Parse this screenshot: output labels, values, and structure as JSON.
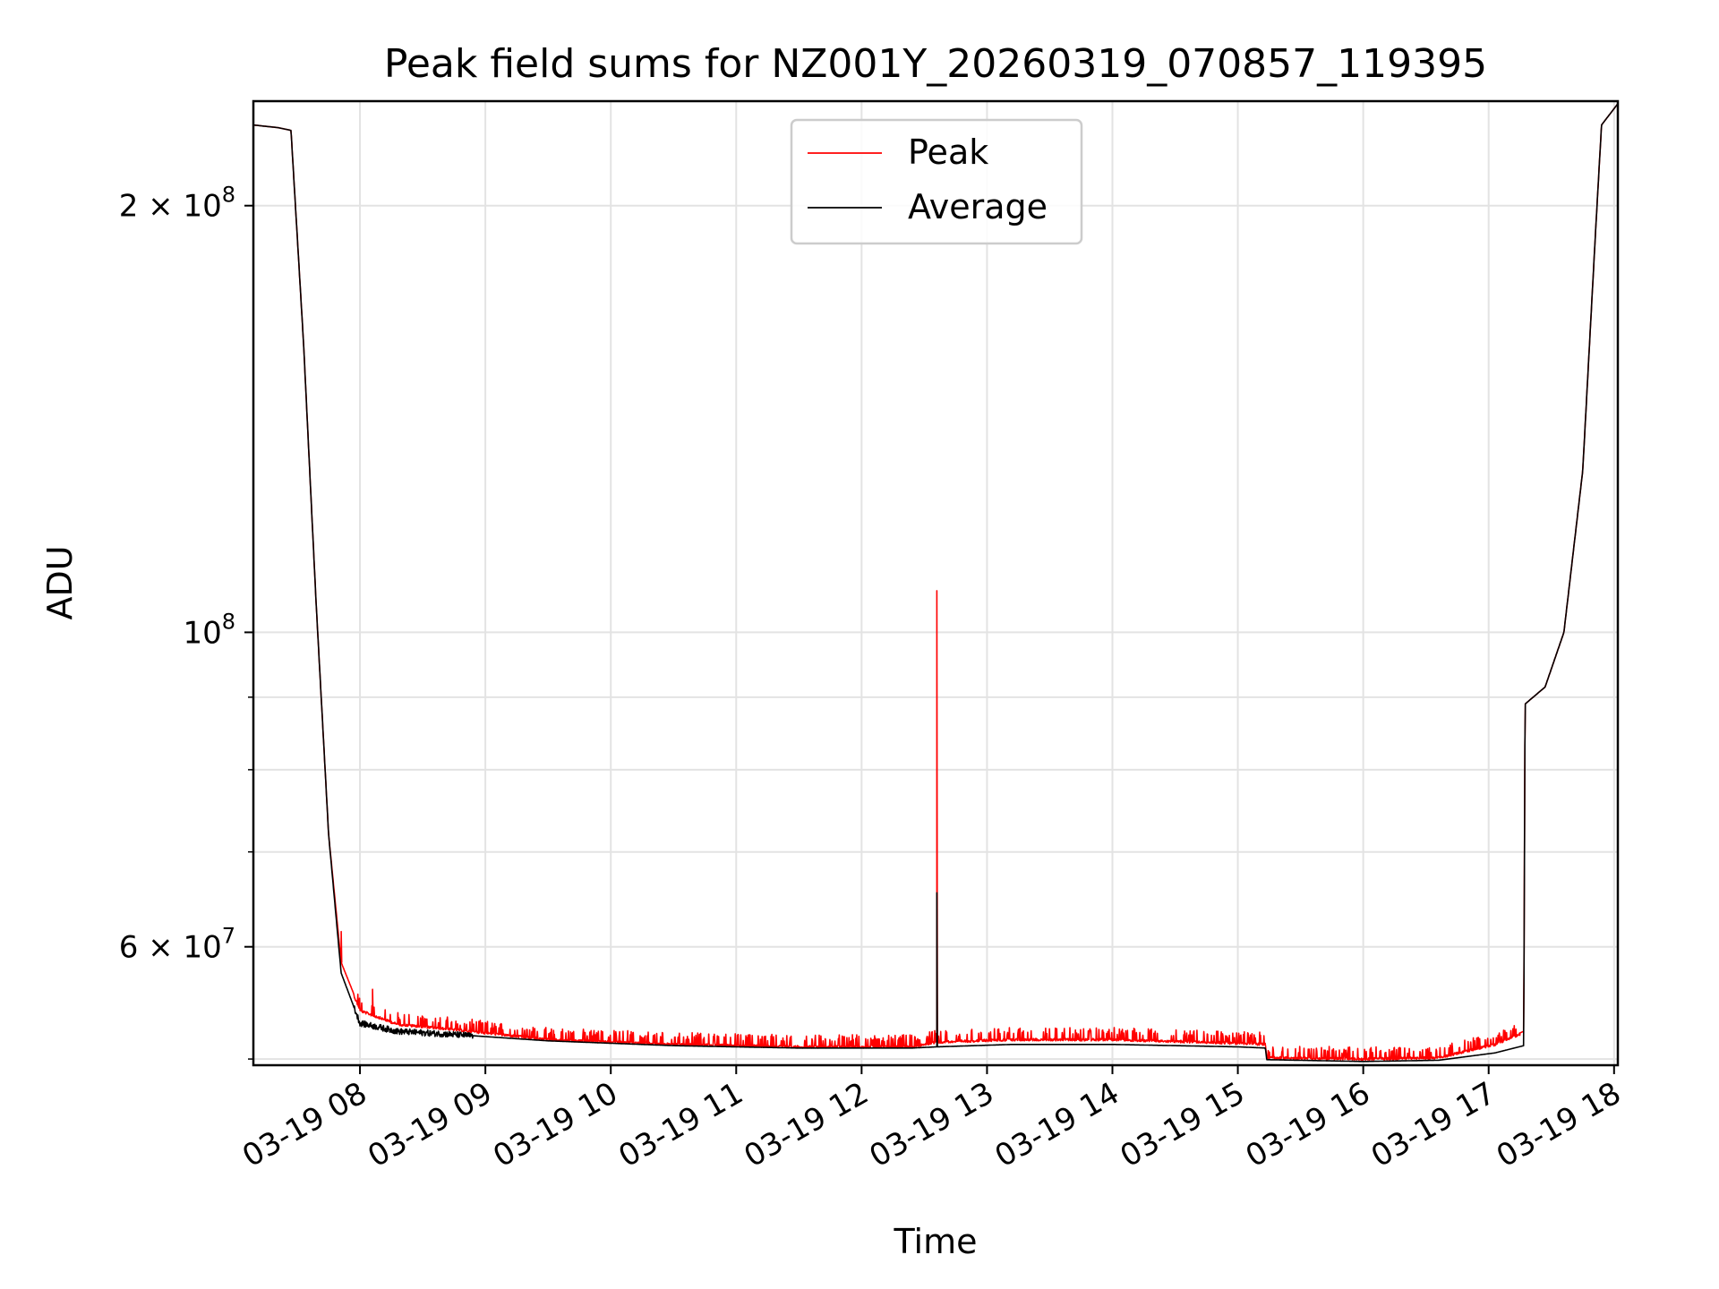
{
  "chart_data": {
    "type": "line",
    "title": "Peak field sums for NZ001Y_20260319_070857_119395",
    "xlabel": "Time",
    "ylabel": "ADU",
    "yscale": "log",
    "grid": true,
    "legend_position": "upper-center",
    "xlim": [
      7.15,
      18.03
    ],
    "ylim": [
      49500000,
      237000000
    ],
    "x_ticks": [
      {
        "value": 8,
        "label": "03-19 08"
      },
      {
        "value": 9,
        "label": "03-19 09"
      },
      {
        "value": 10,
        "label": "03-19 10"
      },
      {
        "value": 11,
        "label": "03-19 11"
      },
      {
        "value": 12,
        "label": "03-19 12"
      },
      {
        "value": 13,
        "label": "03-19 13"
      },
      {
        "value": 14,
        "label": "03-19 14"
      },
      {
        "value": 15,
        "label": "03-19 15"
      },
      {
        "value": 16,
        "label": "03-19 16"
      },
      {
        "value": 17,
        "label": "03-19 17"
      },
      {
        "value": 18,
        "label": "03-19 18"
      }
    ],
    "y_ticks": [
      {
        "value": 60000000,
        "mantissa": "6",
        "exponent": "7"
      },
      {
        "value": 100000000,
        "mantissa": "",
        "exponent": "8"
      },
      {
        "value": 200000000,
        "mantissa": "2",
        "exponent": "8"
      }
    ],
    "y_minor_ticks": [
      50000000,
      70000000,
      80000000,
      90000000
    ],
    "series": [
      {
        "name": "Peak",
        "color": "#ff0000",
        "anchors": [
          [
            7.15,
            228000000
          ],
          [
            7.35,
            227000000
          ],
          [
            7.45,
            226000000
          ],
          [
            7.55,
            160000000
          ],
          [
            7.65,
            105000000
          ],
          [
            7.75,
            72000000
          ],
          [
            7.85,
            58500000
          ],
          [
            8.0,
            54200000
          ],
          [
            8.3,
            53000000
          ],
          [
            8.8,
            52500000
          ],
          [
            9.5,
            51700000
          ],
          [
            10.5,
            51300000
          ],
          [
            11.5,
            51100000
          ],
          [
            12.4,
            51100000
          ],
          [
            12.6,
            51500000
          ],
          [
            13.2,
            51700000
          ],
          [
            14.0,
            51700000
          ],
          [
            15.0,
            51400000
          ],
          [
            15.22,
            51300000
          ],
          [
            15.23,
            50200000
          ],
          [
            16.0,
            50100000
          ],
          [
            16.6,
            50200000
          ],
          [
            17.05,
            51300000
          ],
          [
            17.28,
            52300000
          ],
          [
            17.29,
            89000000
          ],
          [
            17.45,
            91500000
          ],
          [
            17.6,
            100000000
          ],
          [
            17.75,
            130000000
          ],
          [
            17.85,
            190000000
          ],
          [
            17.9,
            228000000
          ],
          [
            18.03,
            236000000
          ]
        ],
        "noise": {
          "start": 7.95,
          "end": 17.25,
          "high_sigma": 0.012,
          "low_sigma": 0.004
        },
        "spikes": [
          [
            7.85,
            61500000
          ],
          [
            8.1,
            56000000
          ],
          [
            12.6,
            107000000
          ]
        ]
      },
      {
        "name": "Average",
        "color": "#000000",
        "anchors": [
          [
            7.15,
            228000000
          ],
          [
            7.35,
            227000000
          ],
          [
            7.45,
            226000000
          ],
          [
            7.55,
            160000000
          ],
          [
            7.65,
            105000000
          ],
          [
            7.75,
            72000000
          ],
          [
            7.85,
            57500000
          ],
          [
            8.0,
            53000000
          ],
          [
            8.3,
            52300000
          ],
          [
            8.8,
            52000000
          ],
          [
            9.5,
            51500000
          ],
          [
            10.5,
            51100000
          ],
          [
            11.5,
            50900000
          ],
          [
            12.4,
            50900000
          ],
          [
            12.6,
            51000000
          ],
          [
            13.2,
            51200000
          ],
          [
            14.0,
            51200000
          ],
          [
            15.0,
            51000000
          ],
          [
            15.22,
            50900000
          ],
          [
            15.23,
            49950000
          ],
          [
            16.0,
            49800000
          ],
          [
            16.6,
            49900000
          ],
          [
            17.05,
            50500000
          ],
          [
            17.28,
            51100000
          ],
          [
            17.29,
            89000000
          ],
          [
            17.45,
            91500000
          ],
          [
            17.6,
            100000000
          ],
          [
            17.75,
            130000000
          ],
          [
            17.85,
            190000000
          ],
          [
            17.9,
            228000000
          ],
          [
            18.03,
            236000000
          ]
        ],
        "noise": {
          "start": 7.95,
          "end": 8.9,
          "high_sigma": 0.005,
          "low_sigma": 0.005
        },
        "spikes": [
          [
            12.6,
            65500000
          ]
        ]
      }
    ]
  }
}
